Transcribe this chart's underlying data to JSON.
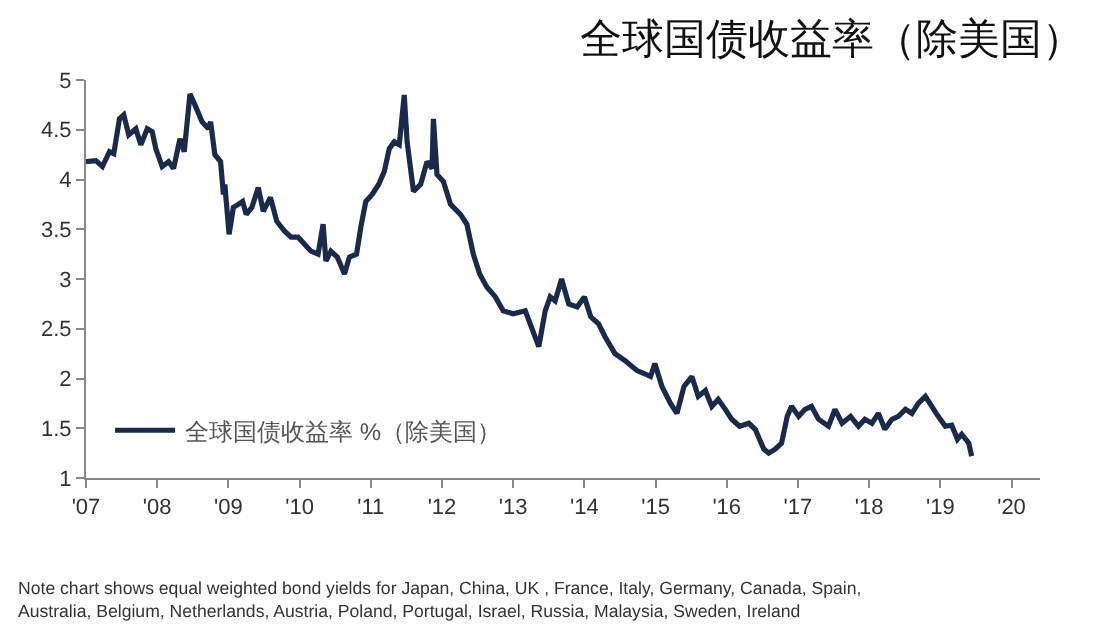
{
  "chart_data": {
    "type": "line",
    "title": "全球国债收益率（除美国）",
    "annotations": [
      "Note chart shows equal weighted bond yields for Japan, China, UK , France, Italy, Germany, Canada, Spain, Australia, Belgium, Netherlands, Austria, Poland, Portugal, Israel, Russia, Malaysia, Sweden, Ireland"
    ],
    "xlim": [
      2007,
      2020.4
    ],
    "xticks": [
      {
        "value": 2007,
        "label": "'07"
      },
      {
        "value": 2008,
        "label": "'08"
      },
      {
        "value": 2009,
        "label": "'09"
      },
      {
        "value": 2010,
        "label": "'10"
      },
      {
        "value": 2011,
        "label": "'11"
      },
      {
        "value": 2012,
        "label": "'12"
      },
      {
        "value": 2013,
        "label": "'13"
      },
      {
        "value": 2014,
        "label": "'14"
      },
      {
        "value": 2015,
        "label": "'15"
      },
      {
        "value": 2016,
        "label": "'16"
      },
      {
        "value": 2017,
        "label": "'17"
      },
      {
        "value": 2018,
        "label": "'18"
      },
      {
        "value": 2019,
        "label": "'19"
      },
      {
        "value": 2020,
        "label": "'20"
      }
    ],
    "ylim": [
      1,
      5
    ],
    "yticks": [
      1,
      1.5,
      2,
      2.5,
      3,
      3.5,
      4,
      4.5,
      5
    ],
    "grid": false,
    "legend": "bottom left",
    "marker": "none",
    "line_style": "solid",
    "series": [
      {
        "name": "全球国债收益率 %（除美国）",
        "color": "#1b2a4a",
        "x": [
          2007.0,
          2007.14,
          2007.23,
          2007.33,
          2007.39,
          2007.47,
          2007.53,
          2007.6,
          2007.7,
          2007.77,
          2007.86,
          2007.93,
          2007.98,
          2008.07,
          2008.16,
          2008.23,
          2008.32,
          2008.38,
          2008.46,
          2008.53,
          2008.63,
          2008.72,
          2008.75,
          2008.81,
          2008.89,
          2008.93,
          2008.95,
          2009.01,
          2009.07,
          2009.14,
          2009.2,
          2009.25,
          2009.33,
          2009.42,
          2009.49,
          2009.59,
          2009.68,
          2009.79,
          2009.88,
          2009.98,
          2010.07,
          2010.16,
          2010.26,
          2010.33,
          2010.37,
          2010.44,
          2010.53,
          2010.63,
          2010.7,
          2010.8,
          2010.86,
          2010.93,
          2011.02,
          2011.11,
          2011.19,
          2011.26,
          2011.33,
          2011.4,
          2011.47,
          2011.51,
          2011.6,
          2011.7,
          2011.79,
          2011.86,
          2011.88,
          2011.93,
          2012.02,
          2012.12,
          2012.26,
          2012.35,
          2012.44,
          2012.53,
          2012.63,
          2012.75,
          2012.86,
          2013.0,
          2013.17,
          2013.36,
          2013.45,
          2013.52,
          2013.59,
          2013.68,
          2013.78,
          2013.9,
          2014.0,
          2014.09,
          2014.2,
          2014.29,
          2014.43,
          2014.57,
          2014.67,
          2014.74,
          2014.84,
          2014.93,
          2014.99,
          2015.09,
          2015.21,
          2015.3,
          2015.4,
          2015.51,
          2015.6,
          2015.7,
          2015.79,
          2015.88,
          2015.98,
          2016.07,
          2016.18,
          2016.31,
          2016.4,
          2016.52,
          2016.59,
          2016.68,
          2016.77,
          2016.85,
          2016.91,
          2017.01,
          2017.1,
          2017.19,
          2017.29,
          2017.43,
          2017.52,
          2017.62,
          2017.74,
          2017.85,
          2017.94,
          2018.04,
          2018.13,
          2018.22,
          2018.32,
          2018.41,
          2018.51,
          2018.6,
          2018.69,
          2018.79,
          2018.88,
          2018.97,
          2019.07,
          2019.16,
          2019.24,
          2019.3,
          2019.4,
          2019.44
        ],
        "values": [
          4.18,
          4.19,
          4.13,
          4.28,
          4.26,
          4.61,
          4.65,
          4.45,
          4.51,
          4.35,
          4.51,
          4.48,
          4.31,
          4.13,
          4.18,
          4.11,
          4.41,
          4.28,
          4.86,
          4.75,
          4.58,
          4.51,
          4.58,
          4.25,
          4.18,
          3.85,
          3.95,
          3.45,
          3.72,
          3.75,
          3.78,
          3.65,
          3.72,
          3.92,
          3.68,
          3.82,
          3.58,
          3.48,
          3.42,
          3.42,
          3.35,
          3.28,
          3.25,
          3.55,
          3.18,
          3.28,
          3.22,
          3.05,
          3.22,
          3.25,
          3.52,
          3.78,
          3.85,
          3.95,
          4.08,
          4.31,
          4.38,
          4.35,
          4.85,
          4.38,
          3.88,
          3.95,
          4.18,
          4.11,
          4.61,
          4.05,
          3.98,
          3.75,
          3.65,
          3.55,
          3.25,
          3.05,
          2.92,
          2.82,
          2.68,
          2.65,
          2.68,
          2.32,
          2.68,
          2.82,
          2.78,
          3.0,
          2.75,
          2.72,
          2.82,
          2.62,
          2.55,
          2.42,
          2.25,
          2.18,
          2.12,
          2.08,
          2.05,
          2.02,
          2.15,
          1.92,
          1.75,
          1.65,
          1.92,
          2.02,
          1.82,
          1.88,
          1.72,
          1.79,
          1.69,
          1.59,
          1.52,
          1.55,
          1.49,
          1.29,
          1.25,
          1.29,
          1.35,
          1.62,
          1.72,
          1.62,
          1.69,
          1.72,
          1.59,
          1.52,
          1.69,
          1.55,
          1.62,
          1.52,
          1.59,
          1.55,
          1.65,
          1.49,
          1.59,
          1.62,
          1.69,
          1.65,
          1.75,
          1.82,
          1.72,
          1.62,
          1.52,
          1.53,
          1.39,
          1.44,
          1.35,
          1.22
        ]
      }
    ]
  }
}
